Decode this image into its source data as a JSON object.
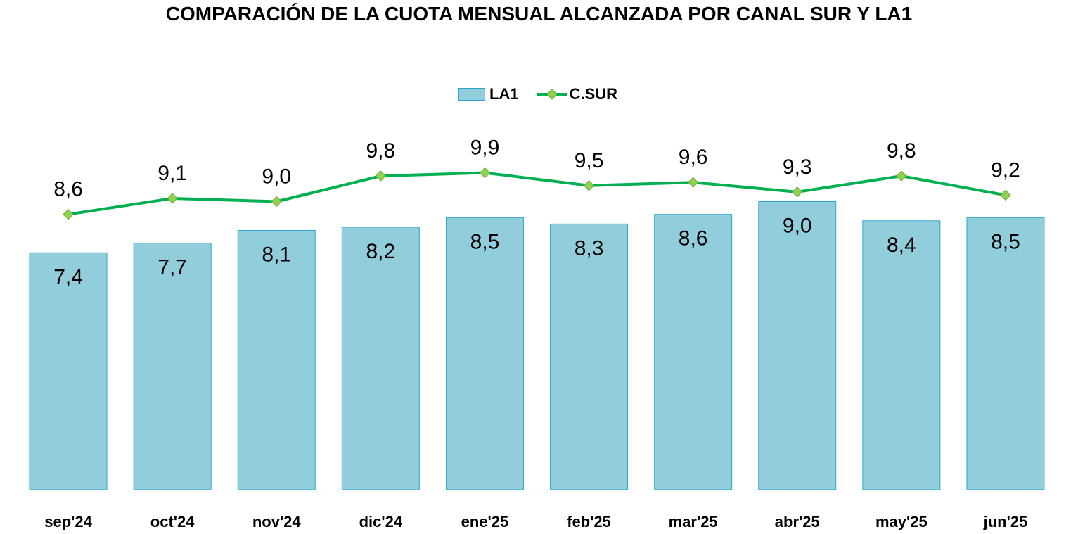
{
  "chart_data": {
    "type": "bar",
    "title": "COMPARACIÓN DE LA CUOTA MENSUAL ALCANZADA POR CANAL SUR Y LA1",
    "categories": [
      "sep'24",
      "oct'24",
      "nov'24",
      "dic'24",
      "ene'25",
      "feb'25",
      "mar'25",
      "abr'25",
      "may'25",
      "jun'25"
    ],
    "series": [
      {
        "name": "LA1",
        "kind": "bar",
        "values": [
          7.4,
          7.7,
          8.1,
          8.2,
          8.5,
          8.3,
          8.6,
          9.0,
          8.4,
          8.5
        ],
        "labels": [
          "7,4",
          "7,7",
          "8,1",
          "8,2",
          "8,5",
          "8,3",
          "8,6",
          "9,0",
          "8,4",
          "8,5"
        ],
        "color": "#92cddc",
        "border_color": "#2fa6cf"
      },
      {
        "name": "C.SUR",
        "kind": "line",
        "values": [
          8.6,
          9.1,
          9.0,
          9.8,
          9.9,
          9.5,
          9.6,
          9.3,
          9.8,
          9.2
        ],
        "labels": [
          "8,6",
          "9,1",
          "9,0",
          "9,8",
          "9,9",
          "9,5",
          "9,6",
          "9,3",
          "9,8",
          "9,2"
        ],
        "color": "#00b050",
        "marker_color": "#92d050"
      }
    ],
    "xlabel": "",
    "ylabel": "",
    "ylim": [
      0,
      15.3
    ],
    "grid": false,
    "legend": "top-center"
  }
}
